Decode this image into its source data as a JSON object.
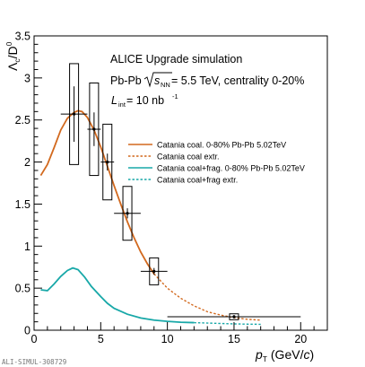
{
  "chart_data": {
    "type": "line",
    "title": "",
    "annotations": {
      "line1": "ALICE Upgrade simulation",
      "line2_pre": "Pb-Pb ",
      "line2_sqrt_var": "s",
      "line2_sqrt_sub": "NN",
      "line2_post": " = 5.5 TeV, centrality 0-20%",
      "line3_L": "L",
      "line3_L_sub": "int",
      "line3_eq": " = 10 nb",
      "line3_sup": "-1"
    },
    "ylabel": {
      "main": "Λ",
      "sub": "c",
      "slash": "/D",
      "sup": "0"
    },
    "xlabel": {
      "p": "p",
      "sub": "T",
      "unit": " (GeV/",
      "c": "c",
      "close": ")"
    },
    "xlim": [
      0,
      22
    ],
    "ylim": [
      0,
      3.5
    ],
    "x_ticks": [
      {
        "value": 0,
        "label": "0"
      },
      {
        "value": 5,
        "label": "5"
      },
      {
        "value": 10,
        "label": "10"
      },
      {
        "value": 15,
        "label": "15"
      },
      {
        "value": 20,
        "label": "20"
      }
    ],
    "y_ticks": [
      {
        "value": 0,
        "label": "0"
      },
      {
        "value": 0.5,
        "label": "0.5"
      },
      {
        "value": 1,
        "label": "1"
      },
      {
        "value": 1.5,
        "label": "1.5"
      },
      {
        "value": 2,
        "label": "2"
      },
      {
        "value": 2.5,
        "label": "2.5"
      },
      {
        "value": 3,
        "label": "3"
      },
      {
        "value": 3.5,
        "label": "3.5"
      }
    ],
    "legend_position": "middle-right",
    "series": [
      {
        "name": "Catania coal. 0-80% Pb-Pb 5.02TeV",
        "color": "#D2691E",
        "style": "solid",
        "x": [
          0.5,
          1.0,
          1.5,
          2.0,
          2.5,
          3.0,
          3.3,
          3.6,
          4.0,
          4.5,
          5.0,
          5.5,
          6.0,
          6.5,
          7.0,
          7.5,
          8.0,
          8.5,
          9.0
        ],
        "y": [
          1.84,
          1.97,
          2.17,
          2.38,
          2.52,
          2.59,
          2.61,
          2.6,
          2.53,
          2.38,
          2.18,
          1.95,
          1.72,
          1.5,
          1.29,
          1.1,
          0.93,
          0.79,
          0.67
        ]
      },
      {
        "name": "Catania coal extr.",
        "color": "#D2691E",
        "style": "dashed",
        "x": [
          9.0,
          10.0,
          11.0,
          12.0,
          13.0,
          14.0,
          15.0,
          16.0,
          17.0
        ],
        "y": [
          0.67,
          0.5,
          0.38,
          0.29,
          0.22,
          0.18,
          0.15,
          0.13,
          0.12
        ]
      },
      {
        "name": "Catania coal+frag. 0-80% Pb-Pb 5.02TeV",
        "color": "#18A8A8",
        "style": "solid",
        "x": [
          0.5,
          1.0,
          1.5,
          2.0,
          2.5,
          2.9,
          3.3,
          3.8,
          4.3,
          5.0,
          5.5,
          6.0,
          7.0,
          8.0,
          9.0,
          10.0,
          11.0,
          12.0
        ],
        "y": [
          0.48,
          0.47,
          0.55,
          0.64,
          0.71,
          0.74,
          0.72,
          0.63,
          0.52,
          0.4,
          0.32,
          0.26,
          0.19,
          0.145,
          0.12,
          0.105,
          0.095,
          0.09
        ]
      },
      {
        "name": "Catania coal+frag extr.",
        "color": "#18A8A8",
        "style": "dashed",
        "x": [
          12.0,
          13.0,
          14.0,
          15.0,
          16.0,
          17.0
        ],
        "y": [
          0.09,
          0.085,
          0.08,
          0.075,
          0.072,
          0.07
        ]
      }
    ],
    "points": [
      {
        "x": 3.0,
        "y": 2.57,
        "xerr": 1.0,
        "stat": 0.33,
        "sys": 0.6
      },
      {
        "x": 4.5,
        "y": 2.39,
        "xerr": 0.5,
        "stat": 0.2,
        "sys": 0.55
      },
      {
        "x": 5.5,
        "y": 2.0,
        "xerr": 0.5,
        "stat": 0.1,
        "sys": 0.45
      },
      {
        "x": 7.0,
        "y": 1.39,
        "xerr": 1.0,
        "stat": 0.06,
        "sys": 0.32
      },
      {
        "x": 9.0,
        "y": 0.7,
        "xerr": 1.0,
        "stat": 0.04,
        "sys": 0.16
      },
      {
        "x": 15.0,
        "y": 0.16,
        "xerr": 5.0,
        "stat": 0.02,
        "sys": 0.035
      }
    ]
  },
  "watermark": "ALI-SIMUL-308729"
}
